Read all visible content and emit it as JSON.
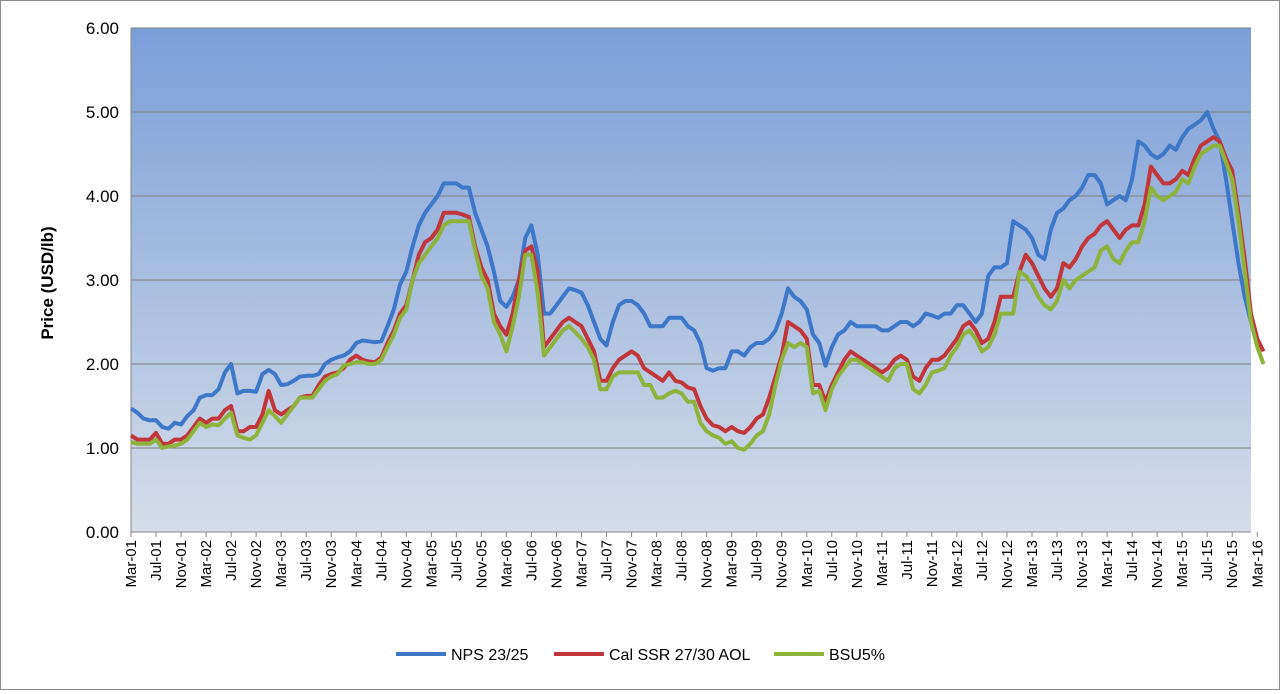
{
  "chart_data": {
    "type": "line",
    "ylabel": "Price (USD/lb)",
    "ylim": [
      0,
      6
    ],
    "yticks": [
      "0.00",
      "1.00",
      "2.00",
      "3.00",
      "4.00",
      "5.00",
      "6.00"
    ],
    "grid": true,
    "legend_position": "bottom",
    "background": "blue-gradient",
    "x_start": "Mar-01",
    "x_tick_labels": [
      "Mar-01",
      "Jul-01",
      "Nov-01",
      "Mar-02",
      "Jul-02",
      "Nov-02",
      "Mar-03",
      "Jul-03",
      "Nov-03",
      "Mar-04",
      "Jul-04",
      "Nov-04",
      "Mar-05",
      "Jul-05",
      "Nov-05",
      "Mar-06",
      "Jul-06",
      "Nov-06",
      "Mar-07",
      "Jul-07",
      "Nov-07",
      "Mar-08",
      "Jul-08",
      "Nov-08",
      "Mar-09",
      "Jul-09",
      "Nov-09",
      "Mar-10",
      "Jul-10",
      "Nov-10",
      "Mar-11",
      "Jul-11",
      "Nov-11",
      "Mar-12",
      "Jul-12",
      "Nov-12",
      "Mar-13",
      "Jul-13",
      "Nov-13",
      "Mar-14",
      "Jul-14",
      "Nov-14",
      "Mar-15",
      "Jul-15",
      "Nov-15",
      "Mar-16"
    ],
    "series": [
      {
        "name": "NPS 23/25",
        "color": "#3d77c7",
        "values": [
          1.47,
          1.42,
          1.35,
          1.33,
          1.33,
          1.25,
          1.23,
          1.3,
          1.28,
          1.38,
          1.45,
          1.6,
          1.63,
          1.63,
          1.7,
          1.9,
          2.0,
          1.65,
          1.68,
          1.68,
          1.67,
          1.88,
          1.93,
          1.88,
          1.75,
          1.76,
          1.8,
          1.85,
          1.86,
          1.86,
          1.88,
          2.0,
          2.05,
          2.08,
          2.1,
          2.15,
          2.25,
          2.28,
          2.27,
          2.26,
          2.27,
          2.45,
          2.65,
          2.95,
          3.1,
          3.4,
          3.65,
          3.8,
          3.9,
          4.0,
          4.15,
          4.15,
          4.15,
          4.1,
          4.1,
          3.8,
          3.6,
          3.4,
          3.1,
          2.75,
          2.68,
          2.8,
          3.0,
          3.5,
          3.65,
          3.3,
          2.6,
          2.6,
          2.7,
          2.8,
          2.9,
          2.88,
          2.85,
          2.7,
          2.5,
          2.3,
          2.22,
          2.5,
          2.7,
          2.75,
          2.75,
          2.7,
          2.6,
          2.45,
          2.45,
          2.45,
          2.55,
          2.55,
          2.55,
          2.45,
          2.4,
          2.25,
          1.95,
          1.92,
          1.95,
          1.95,
          2.15,
          2.15,
          2.1,
          2.2,
          2.25,
          2.25,
          2.3,
          2.4,
          2.6,
          2.9,
          2.8,
          2.75,
          2.65,
          2.35,
          2.25,
          1.98,
          2.2,
          2.35,
          2.4,
          2.5,
          2.45,
          2.45,
          2.45,
          2.45,
          2.4,
          2.4,
          2.45,
          2.5,
          2.5,
          2.45,
          2.5,
          2.6,
          2.58,
          2.55,
          2.6,
          2.6,
          2.7,
          2.7,
          2.6,
          2.5,
          2.6,
          3.05,
          3.15,
          3.15,
          3.2,
          3.7,
          3.65,
          3.6,
          3.5,
          3.3,
          3.25,
          3.6,
          3.8,
          3.85,
          3.95,
          4.0,
          4.1,
          4.25,
          4.25,
          4.15,
          3.9,
          3.95,
          4.0,
          3.95,
          4.2,
          4.65,
          4.6,
          4.5,
          4.45,
          4.5,
          4.6,
          4.55,
          4.7,
          4.8,
          4.85,
          4.9,
          5.0,
          4.8,
          4.65,
          4.2,
          3.7,
          3.2,
          2.8,
          2.5
        ]
      },
      {
        "name": "Cal SSR 27/30 AOL",
        "color": "#c0363a",
        "values": [
          1.15,
          1.1,
          1.1,
          1.1,
          1.18,
          1.05,
          1.05,
          1.1,
          1.1,
          1.15,
          1.25,
          1.35,
          1.3,
          1.35,
          1.35,
          1.45,
          1.5,
          1.2,
          1.2,
          1.25,
          1.25,
          1.4,
          1.68,
          1.45,
          1.4,
          1.45,
          1.5,
          1.6,
          1.62,
          1.62,
          1.75,
          1.85,
          1.88,
          1.9,
          1.95,
          2.05,
          2.1,
          2.05,
          2.03,
          2.02,
          2.08,
          2.25,
          2.4,
          2.6,
          2.7,
          3.0,
          3.3,
          3.45,
          3.5,
          3.6,
          3.8,
          3.8,
          3.8,
          3.78,
          3.75,
          3.4,
          3.15,
          3.0,
          2.6,
          2.45,
          2.35,
          2.6,
          3.0,
          3.35,
          3.4,
          3.1,
          2.2,
          2.3,
          2.4,
          2.5,
          2.55,
          2.5,
          2.45,
          2.3,
          2.15,
          1.8,
          1.8,
          1.95,
          2.05,
          2.1,
          2.15,
          2.1,
          1.95,
          1.9,
          1.85,
          1.8,
          1.9,
          1.8,
          1.78,
          1.72,
          1.7,
          1.5,
          1.35,
          1.27,
          1.25,
          1.2,
          1.25,
          1.2,
          1.18,
          1.25,
          1.35,
          1.4,
          1.6,
          1.85,
          2.1,
          2.5,
          2.45,
          2.4,
          2.3,
          1.75,
          1.75,
          1.55,
          1.75,
          1.9,
          2.05,
          2.15,
          2.1,
          2.05,
          2.0,
          1.95,
          1.9,
          1.95,
          2.05,
          2.1,
          2.05,
          1.85,
          1.8,
          1.95,
          2.05,
          2.05,
          2.1,
          2.2,
          2.3,
          2.45,
          2.5,
          2.4,
          2.25,
          2.3,
          2.5,
          2.8,
          2.8,
          2.8,
          3.1,
          3.3,
          3.2,
          3.05,
          2.9,
          2.8,
          2.9,
          3.2,
          3.15,
          3.25,
          3.4,
          3.5,
          3.55,
          3.65,
          3.7,
          3.6,
          3.5,
          3.6,
          3.65,
          3.65,
          3.9,
          4.35,
          4.25,
          4.15,
          4.15,
          4.2,
          4.3,
          4.25,
          4.45,
          4.6,
          4.65,
          4.7,
          4.65,
          4.45,
          4.3,
          3.8,
          3.25,
          2.6,
          2.3,
          2.15
        ]
      },
      {
        "name": "BSU5%",
        "color": "#8db33b",
        "values": [
          1.07,
          1.05,
          1.05,
          1.05,
          1.1,
          1.0,
          1.02,
          1.03,
          1.05,
          1.1,
          1.2,
          1.3,
          1.25,
          1.28,
          1.27,
          1.35,
          1.42,
          1.15,
          1.12,
          1.1,
          1.15,
          1.3,
          1.45,
          1.38,
          1.3,
          1.4,
          1.5,
          1.6,
          1.6,
          1.6,
          1.7,
          1.8,
          1.85,
          1.88,
          1.98,
          2.0,
          2.02,
          2.02,
          2.0,
          2.0,
          2.05,
          2.2,
          2.35,
          2.55,
          2.65,
          3.0,
          3.2,
          3.3,
          3.4,
          3.5,
          3.65,
          3.7,
          3.7,
          3.7,
          3.7,
          3.35,
          3.05,
          2.9,
          2.5,
          2.35,
          2.15,
          2.45,
          2.8,
          3.3,
          3.3,
          2.85,
          2.1,
          2.2,
          2.3,
          2.4,
          2.45,
          2.38,
          2.3,
          2.2,
          2.05,
          1.7,
          1.7,
          1.85,
          1.9,
          1.9,
          1.9,
          1.9,
          1.75,
          1.75,
          1.6,
          1.6,
          1.65,
          1.68,
          1.65,
          1.55,
          1.55,
          1.3,
          1.2,
          1.15,
          1.12,
          1.05,
          1.08,
          1.0,
          0.98,
          1.05,
          1.15,
          1.2,
          1.4,
          1.75,
          2.05,
          2.25,
          2.2,
          2.25,
          2.2,
          1.65,
          1.68,
          1.45,
          1.7,
          1.85,
          1.95,
          2.05,
          2.05,
          2.0,
          1.95,
          1.9,
          1.85,
          1.8,
          1.95,
          2.0,
          2.0,
          1.7,
          1.65,
          1.75,
          1.9,
          1.92,
          1.95,
          2.1,
          2.2,
          2.35,
          2.4,
          2.3,
          2.15,
          2.2,
          2.35,
          2.6,
          2.6,
          2.6,
          3.1,
          3.05,
          2.95,
          2.8,
          2.7,
          2.65,
          2.75,
          3.0,
          2.9,
          3.0,
          3.05,
          3.1,
          3.15,
          3.35,
          3.4,
          3.25,
          3.2,
          3.35,
          3.45,
          3.45,
          3.7,
          4.1,
          4.0,
          3.95,
          4.0,
          4.05,
          4.2,
          4.15,
          4.35,
          4.5,
          4.55,
          4.6,
          4.6,
          4.4,
          4.2,
          3.7,
          3.1,
          2.5,
          2.2,
          2.0
        ]
      }
    ]
  }
}
